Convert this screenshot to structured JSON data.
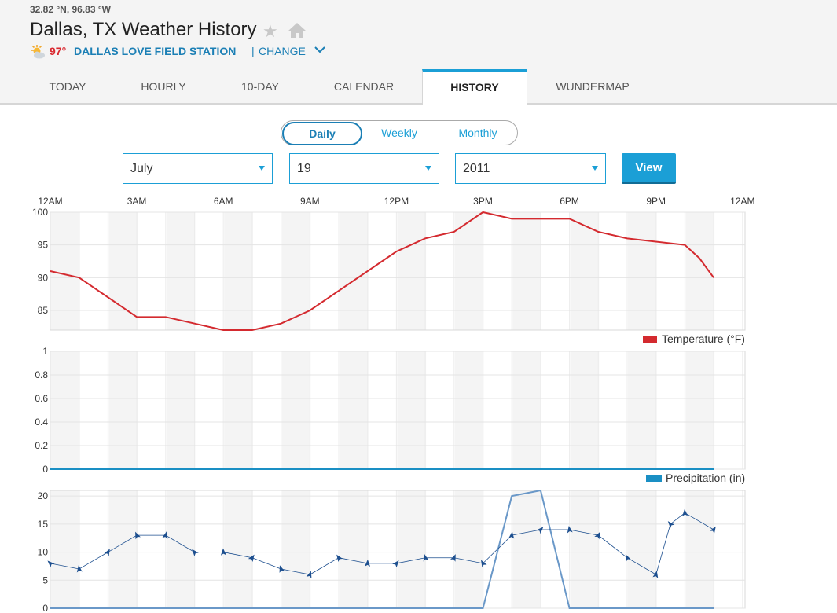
{
  "header": {
    "coords": "32.82 °N, 96.83 °W",
    "title": "Dallas, TX Weather History",
    "current_temp": "97°",
    "station": "DALLAS LOVE FIELD STATION",
    "separator": "|",
    "change_label": "CHANGE",
    "icons": {
      "favorite": "star-icon",
      "home": "home-icon",
      "weather": "sun-cloud-icon",
      "change": "chevron-down-icon"
    }
  },
  "tabs": [
    {
      "label": "TODAY"
    },
    {
      "label": "HOURLY"
    },
    {
      "label": "10-DAY"
    },
    {
      "label": "CALENDAR"
    },
    {
      "label": "HISTORY",
      "active": true
    },
    {
      "label": "WUNDERMAP"
    }
  ],
  "view_toggle": {
    "options": [
      "Daily",
      "Weekly",
      "Monthly"
    ],
    "selected": "Daily"
  },
  "date_selector": {
    "month": "July",
    "day": "19",
    "year": "2011",
    "view_label": "View"
  },
  "colors": {
    "accent": "#1b9fd6",
    "temperature": "#d42a2f",
    "precipitation": "#1a8fc4",
    "wind": "#1d4f8f",
    "gust": "#6a98c8"
  },
  "chart_data": [
    {
      "type": "line",
      "x_ticks": [
        "12AM",
        "3AM",
        "6AM",
        "9AM",
        "12PM",
        "3PM",
        "6PM",
        "9PM",
        "12AM"
      ],
      "ylim": [
        82,
        100
      ],
      "y_ticks": [
        "100",
        "95",
        "90",
        "85"
      ],
      "legend": "Temperature (°F)",
      "grid": true,
      "series": [
        {
          "name": "Temperature (°F)",
          "x": [
            0,
            1,
            3,
            4,
            6,
            7,
            8,
            9,
            12,
            13,
            14,
            15,
            16,
            18,
            19,
            20,
            22,
            22.5,
            23
          ],
          "values": [
            91,
            90,
            84,
            84,
            82,
            82,
            83,
            85,
            94,
            96,
            97,
            100,
            99,
            99,
            97,
            96,
            95,
            93,
            90
          ]
        }
      ]
    },
    {
      "type": "area",
      "ylim": [
        0,
        1
      ],
      "y_ticks": [
        "1",
        "0.8",
        "0.6",
        "0.4",
        "0.2",
        "0"
      ],
      "legend": "Precipitation (in)",
      "grid": true,
      "series": [
        {
          "name": "Precipitation (in)",
          "x": [
            0,
            23
          ],
          "values": [
            0,
            0
          ]
        }
      ]
    },
    {
      "type": "line",
      "ylim": [
        0,
        21
      ],
      "y_ticks": [
        "20",
        "15",
        "10",
        "5",
        "0"
      ],
      "grid": true,
      "series": [
        {
          "x": [
            0,
            1,
            2,
            3,
            4,
            5,
            6,
            7,
            8,
            9,
            10,
            11,
            12,
            13,
            14,
            15,
            16,
            17,
            18,
            19,
            20,
            21,
            21.5,
            22,
            23
          ],
          "values": [
            8,
            7,
            10,
            13,
            13,
            10,
            10,
            9,
            7,
            6,
            9,
            8,
            8,
            9,
            9,
            8,
            13,
            14,
            14,
            13,
            9,
            6,
            15,
            17,
            14
          ]
        },
        {
          "x": [
            0,
            15,
            16,
            17,
            18,
            23
          ],
          "values": [
            0,
            0,
            20,
            21,
            0,
            0
          ]
        }
      ]
    }
  ]
}
